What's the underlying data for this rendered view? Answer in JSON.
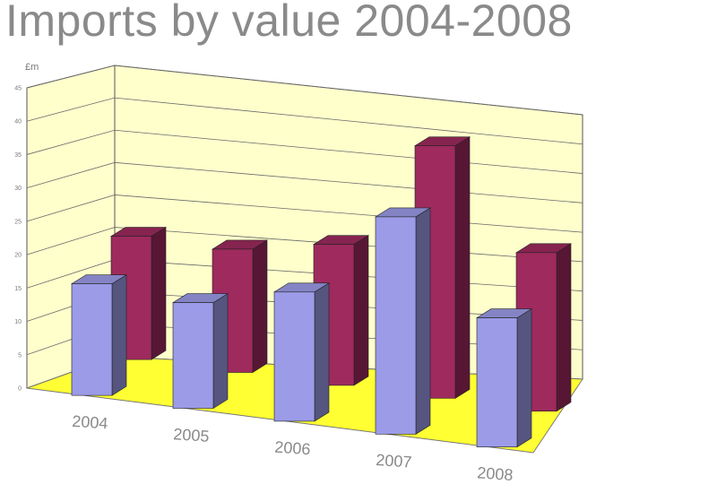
{
  "chart_data": {
    "type": "bar",
    "title": "Imports by value 2004-2008",
    "ylabel": "£m",
    "xlabel": "",
    "categories": [
      "2004",
      "2005",
      "2006",
      "2007",
      "2008"
    ],
    "series": [
      {
        "values": [
          19,
          18,
          22,
          37,
          22
        ],
        "color": "#9b9be8"
      },
      {
        "values": [
          21,
          21,
          24,
          43,
          27
        ],
        "color": "#9e2a5e"
      }
    ],
    "ylim": [
      0,
      45
    ],
    "yticks": [
      "0",
      "5",
      "10",
      "15",
      "20",
      "25",
      "30",
      "35",
      "40",
      "45"
    ],
    "grid": true,
    "view": "3d",
    "colors": {
      "wall": "#ffffcc",
      "floor": "#ffff33"
    }
  }
}
